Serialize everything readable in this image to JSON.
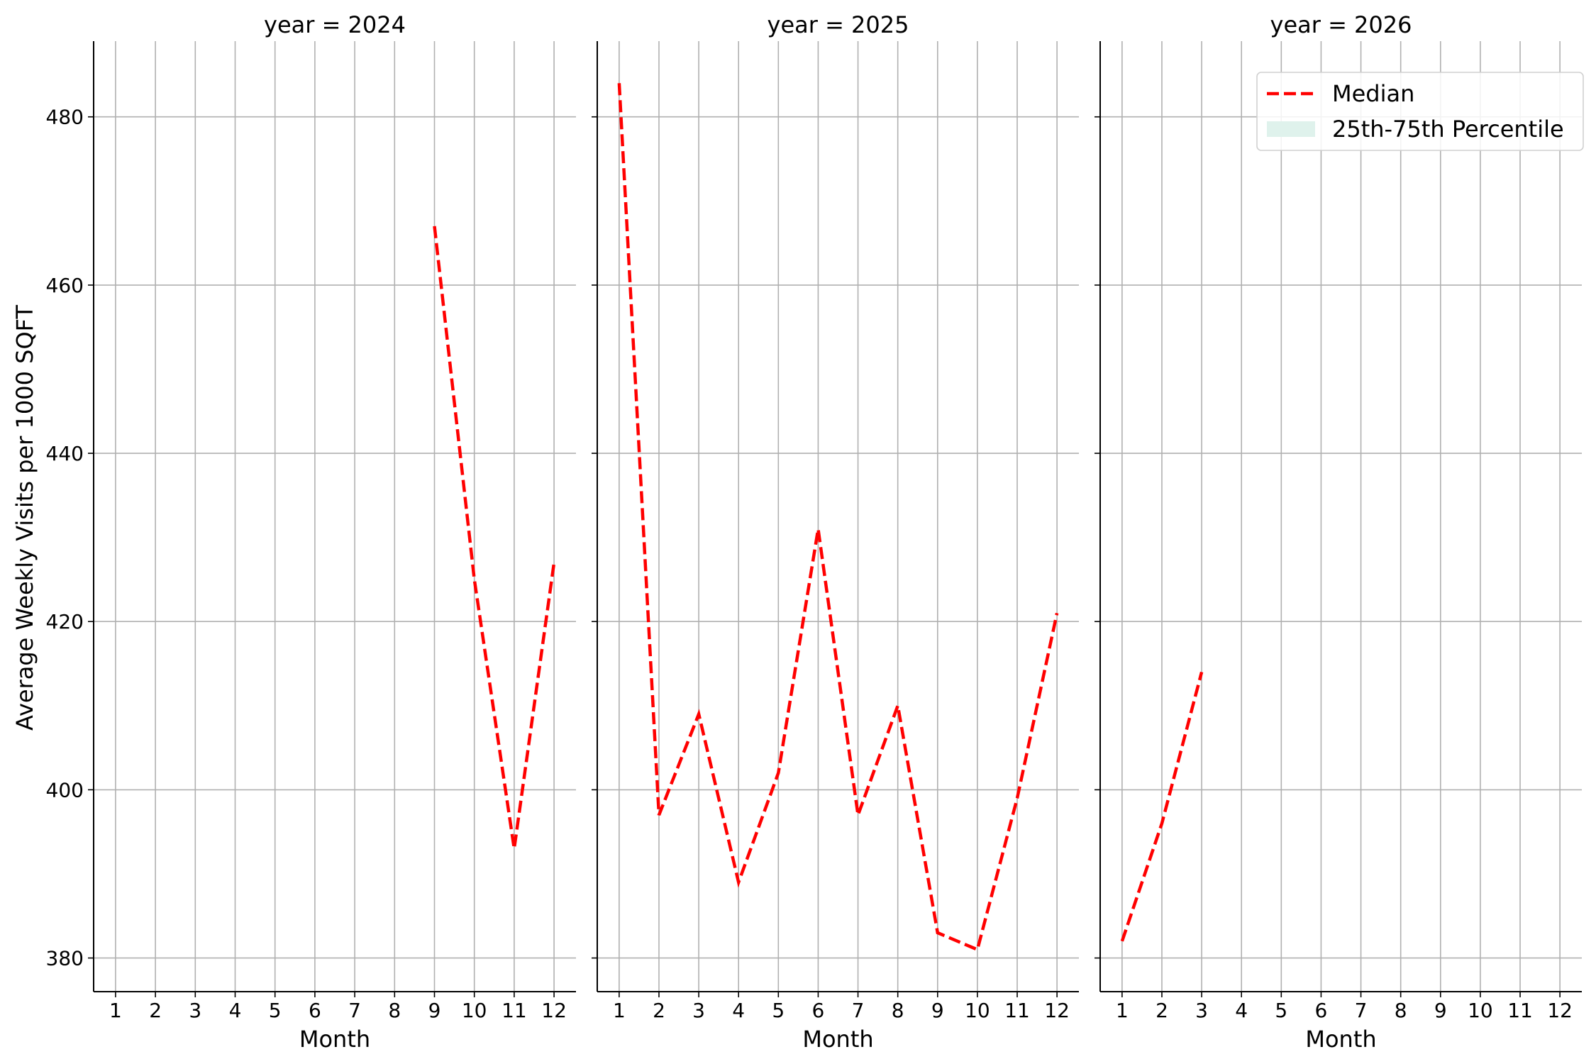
{
  "chart_data": {
    "type": "line",
    "ylabel": "Average Weekly Visits per 1000 SQFT",
    "xlabel": "Month",
    "x_ticks": [
      1,
      2,
      3,
      4,
      5,
      6,
      7,
      8,
      9,
      10,
      11,
      12
    ],
    "y_ticks": [
      380,
      400,
      420,
      440,
      460,
      480
    ],
    "xlim": [
      0.45,
      12.55
    ],
    "ylim": [
      376,
      489
    ],
    "grid": true,
    "legend": {
      "placement": "upper-right of last panel",
      "entries": [
        {
          "label": "Median",
          "style": "dashed-line",
          "color": "#ff0000"
        },
        {
          "label": "25th-75th Percentile",
          "style": "band",
          "color": "#dff2ec"
        }
      ]
    },
    "panels": [
      {
        "title": "year = 2024",
        "series": [
          {
            "name": "Median",
            "color": "#ff0000",
            "x": [
              9,
              10,
              11,
              12
            ],
            "y": [
              467,
              425,
              393,
              427
            ]
          }
        ]
      },
      {
        "title": "year = 2025",
        "series": [
          {
            "name": "Median",
            "color": "#ff0000",
            "x": [
              1,
              2,
              3,
              4,
              5,
              6,
              7,
              8,
              9,
              10,
              11,
              12
            ],
            "y": [
              484,
              397,
              409,
              389,
              402,
              431,
              397,
              410,
              383,
              381,
              399,
              421
            ]
          }
        ]
      },
      {
        "title": "year = 2026",
        "series": [
          {
            "name": "Median",
            "color": "#ff0000",
            "x": [
              1,
              2,
              3
            ],
            "y": [
              382,
              396,
              414
            ]
          }
        ]
      }
    ]
  }
}
